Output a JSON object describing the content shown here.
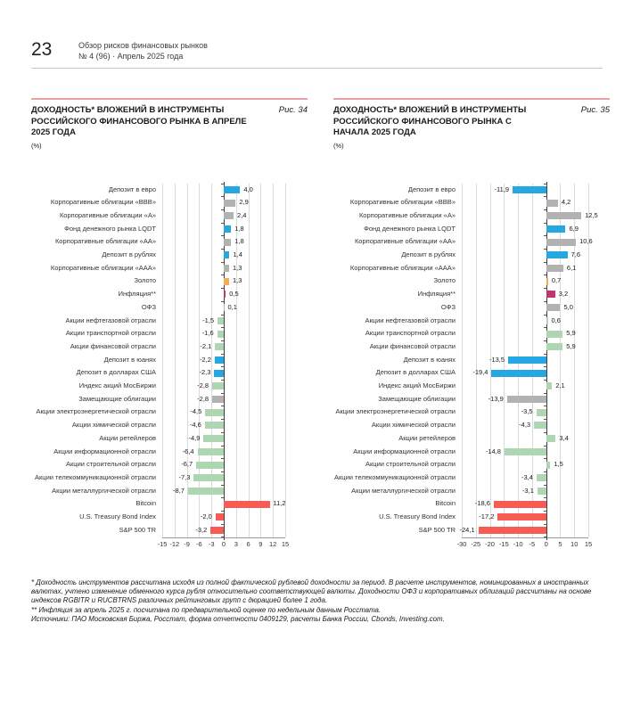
{
  "page": {
    "number": "23",
    "header_line1": "Обзор рисков финансовых рынков",
    "header_line2": "№ 4 (96) · Апрель 2025 года"
  },
  "palette": {
    "deposit": "#25a8e1",
    "bond": "#b2b2b2",
    "gold": "#f0ad55",
    "inflation": "#c2336f",
    "equity": "#aed6b2",
    "foreign": "#f75c54"
  },
  "chart_data": [
    {
      "type": "bar",
      "orientation": "horizontal",
      "fig_label": "Рис. 34",
      "title": "ДОХОДНОСТЬ* ВЛОЖЕНИЙ В ИНСТРУМЕНТЫ РОССИЙСКОГО ФИНАНСОВОГО РЫНКА В АПРЕЛЕ 2025 ГОДА",
      "unit": "(%)",
      "grid": true,
      "xlim": [
        -15,
        15
      ],
      "xticks": [
        -15,
        -12,
        -9,
        -6,
        -3,
        0,
        3,
        6,
        9,
        12,
        15
      ],
      "categories": [
        "Депозит в евро",
        "Корпоративные облигации «ВВВ»",
        "Корпоративные облигации «А»",
        "Фонд денежного рынка LQDT",
        "Корпоративные облигации «АА»",
        "Депозит в рублях",
        "Корпоративные облигации «ААА»",
        "Золото",
        "Инфляция**",
        "ОФЗ",
        "Акции нефтегазовой отрасли",
        "Акции транспортной отрасли",
        "Акции финансовой отрасли",
        "Депозит в юанях",
        "Депозит в долларах США",
        "Индекс акций МосБиржи",
        "Замещающие облигации",
        "Акции электроэнергетической отрасли",
        "Акции химической отрасли",
        "Акции ретейлеров",
        "Акции информационной отрасли",
        "Акции строительной отрасли",
        "Акции телекоммуникационной отрасли",
        "Акции металлургической отрасли",
        "Bitcoin",
        "U.S. Treasury Bond Index",
        "S&P 500 TR"
      ],
      "values": [
        4.0,
        2.9,
        2.4,
        1.8,
        1.8,
        1.4,
        1.3,
        1.3,
        0.5,
        0.1,
        -1.5,
        -1.6,
        -2.1,
        -2.2,
        -2.3,
        -2.8,
        -2.8,
        -4.5,
        -4.6,
        -4.9,
        -6.4,
        -6.7,
        -7.3,
        -8.7,
        11.2,
        -2.0,
        -3.2
      ],
      "colors": [
        "deposit",
        "bond",
        "bond",
        "deposit",
        "bond",
        "deposit",
        "bond",
        "gold",
        "inflation",
        "bond",
        "equity",
        "equity",
        "equity",
        "deposit",
        "deposit",
        "equity",
        "bond",
        "equity",
        "equity",
        "equity",
        "equity",
        "equity",
        "equity",
        "equity",
        "foreign",
        "foreign",
        "foreign"
      ]
    },
    {
      "type": "bar",
      "orientation": "horizontal",
      "fig_label": "Рис. 35",
      "title": "ДОХОДНОСТЬ* ВЛОЖЕНИЙ В ИНСТРУМЕНТЫ РОССИЙСКОГО ФИНАНСОВОГО РЫНКА С НАЧАЛА 2025 ГОДА",
      "unit": "(%)",
      "grid": true,
      "xlim": [
        -30,
        15
      ],
      "xticks": [
        -30,
        -25,
        -20,
        -15,
        -10,
        -5,
        0,
        5,
        10,
        15
      ],
      "categories": [
        "Депозит в евро",
        "Корпоративные облигации «ВВВ»",
        "Корпоративные облигации «А»",
        "Фонд денежного рынка LQDT",
        "Корпоративные облигации «АА»",
        "Депозит в рублях",
        "Корпоративные облигации «ААА»",
        "Золото",
        "Инфляция**",
        "ОФЗ",
        "Акции нефтегазовой отрасли",
        "Акции транспортной отрасли",
        "Акции финансовой отрасли",
        "Депозит в юанях",
        "Депозит в долларах США",
        "Индекс акций МосБиржи",
        "Замещающие облигации",
        "Акции электроэнергетической отрасли",
        "Акции химической отрасли",
        "Акции ретейлеров",
        "Акции информационной отрасли",
        "Акции строительной отрасли",
        "Акции телекоммуникационной отрасли",
        "Акции металлургической отрасли",
        "Bitcoin",
        "U.S. Treasury Bond Index",
        "S&P 500 TR"
      ],
      "values": [
        -11.9,
        4.2,
        12.5,
        6.9,
        10.6,
        7.6,
        6.1,
        0.7,
        3.2,
        5.0,
        0.6,
        5.9,
        5.9,
        -13.5,
        -19.4,
        2.1,
        -13.9,
        -3.5,
        -4.3,
        3.4,
        -14.8,
        1.5,
        -3.4,
        -3.1,
        -18.6,
        -17.2,
        -24.1
      ],
      "colors": [
        "deposit",
        "bond",
        "bond",
        "deposit",
        "bond",
        "deposit",
        "bond",
        "gold",
        "inflation",
        "bond",
        "equity",
        "equity",
        "equity",
        "deposit",
        "deposit",
        "equity",
        "bond",
        "equity",
        "equity",
        "equity",
        "equity",
        "equity",
        "equity",
        "equity",
        "foreign",
        "foreign",
        "foreign"
      ]
    }
  ],
  "footnotes": [
    "* Доходность инструментов рассчитана исходя из полной фактической рублевой доходности за период. В расчете инструментов, номинированных в иностранных валютах, учтено изменение обменного курса рубля относительно соответствующей валюты. Доходности ОФЗ и корпоративных облигаций рассчитаны на основе индексов RGBITR и RUCBTRNS различных рейтинговых групп с дюрацией более 1 года.",
    "** Инфляция за апрель 2025 г. посчитана по предварительной оценке по недельным данным Росстата.",
    "Источники: ПАО Московская Биржа, Росстат, форма отчетности 0409129, расчеты Банка России, Cbonds, Investing.com."
  ]
}
